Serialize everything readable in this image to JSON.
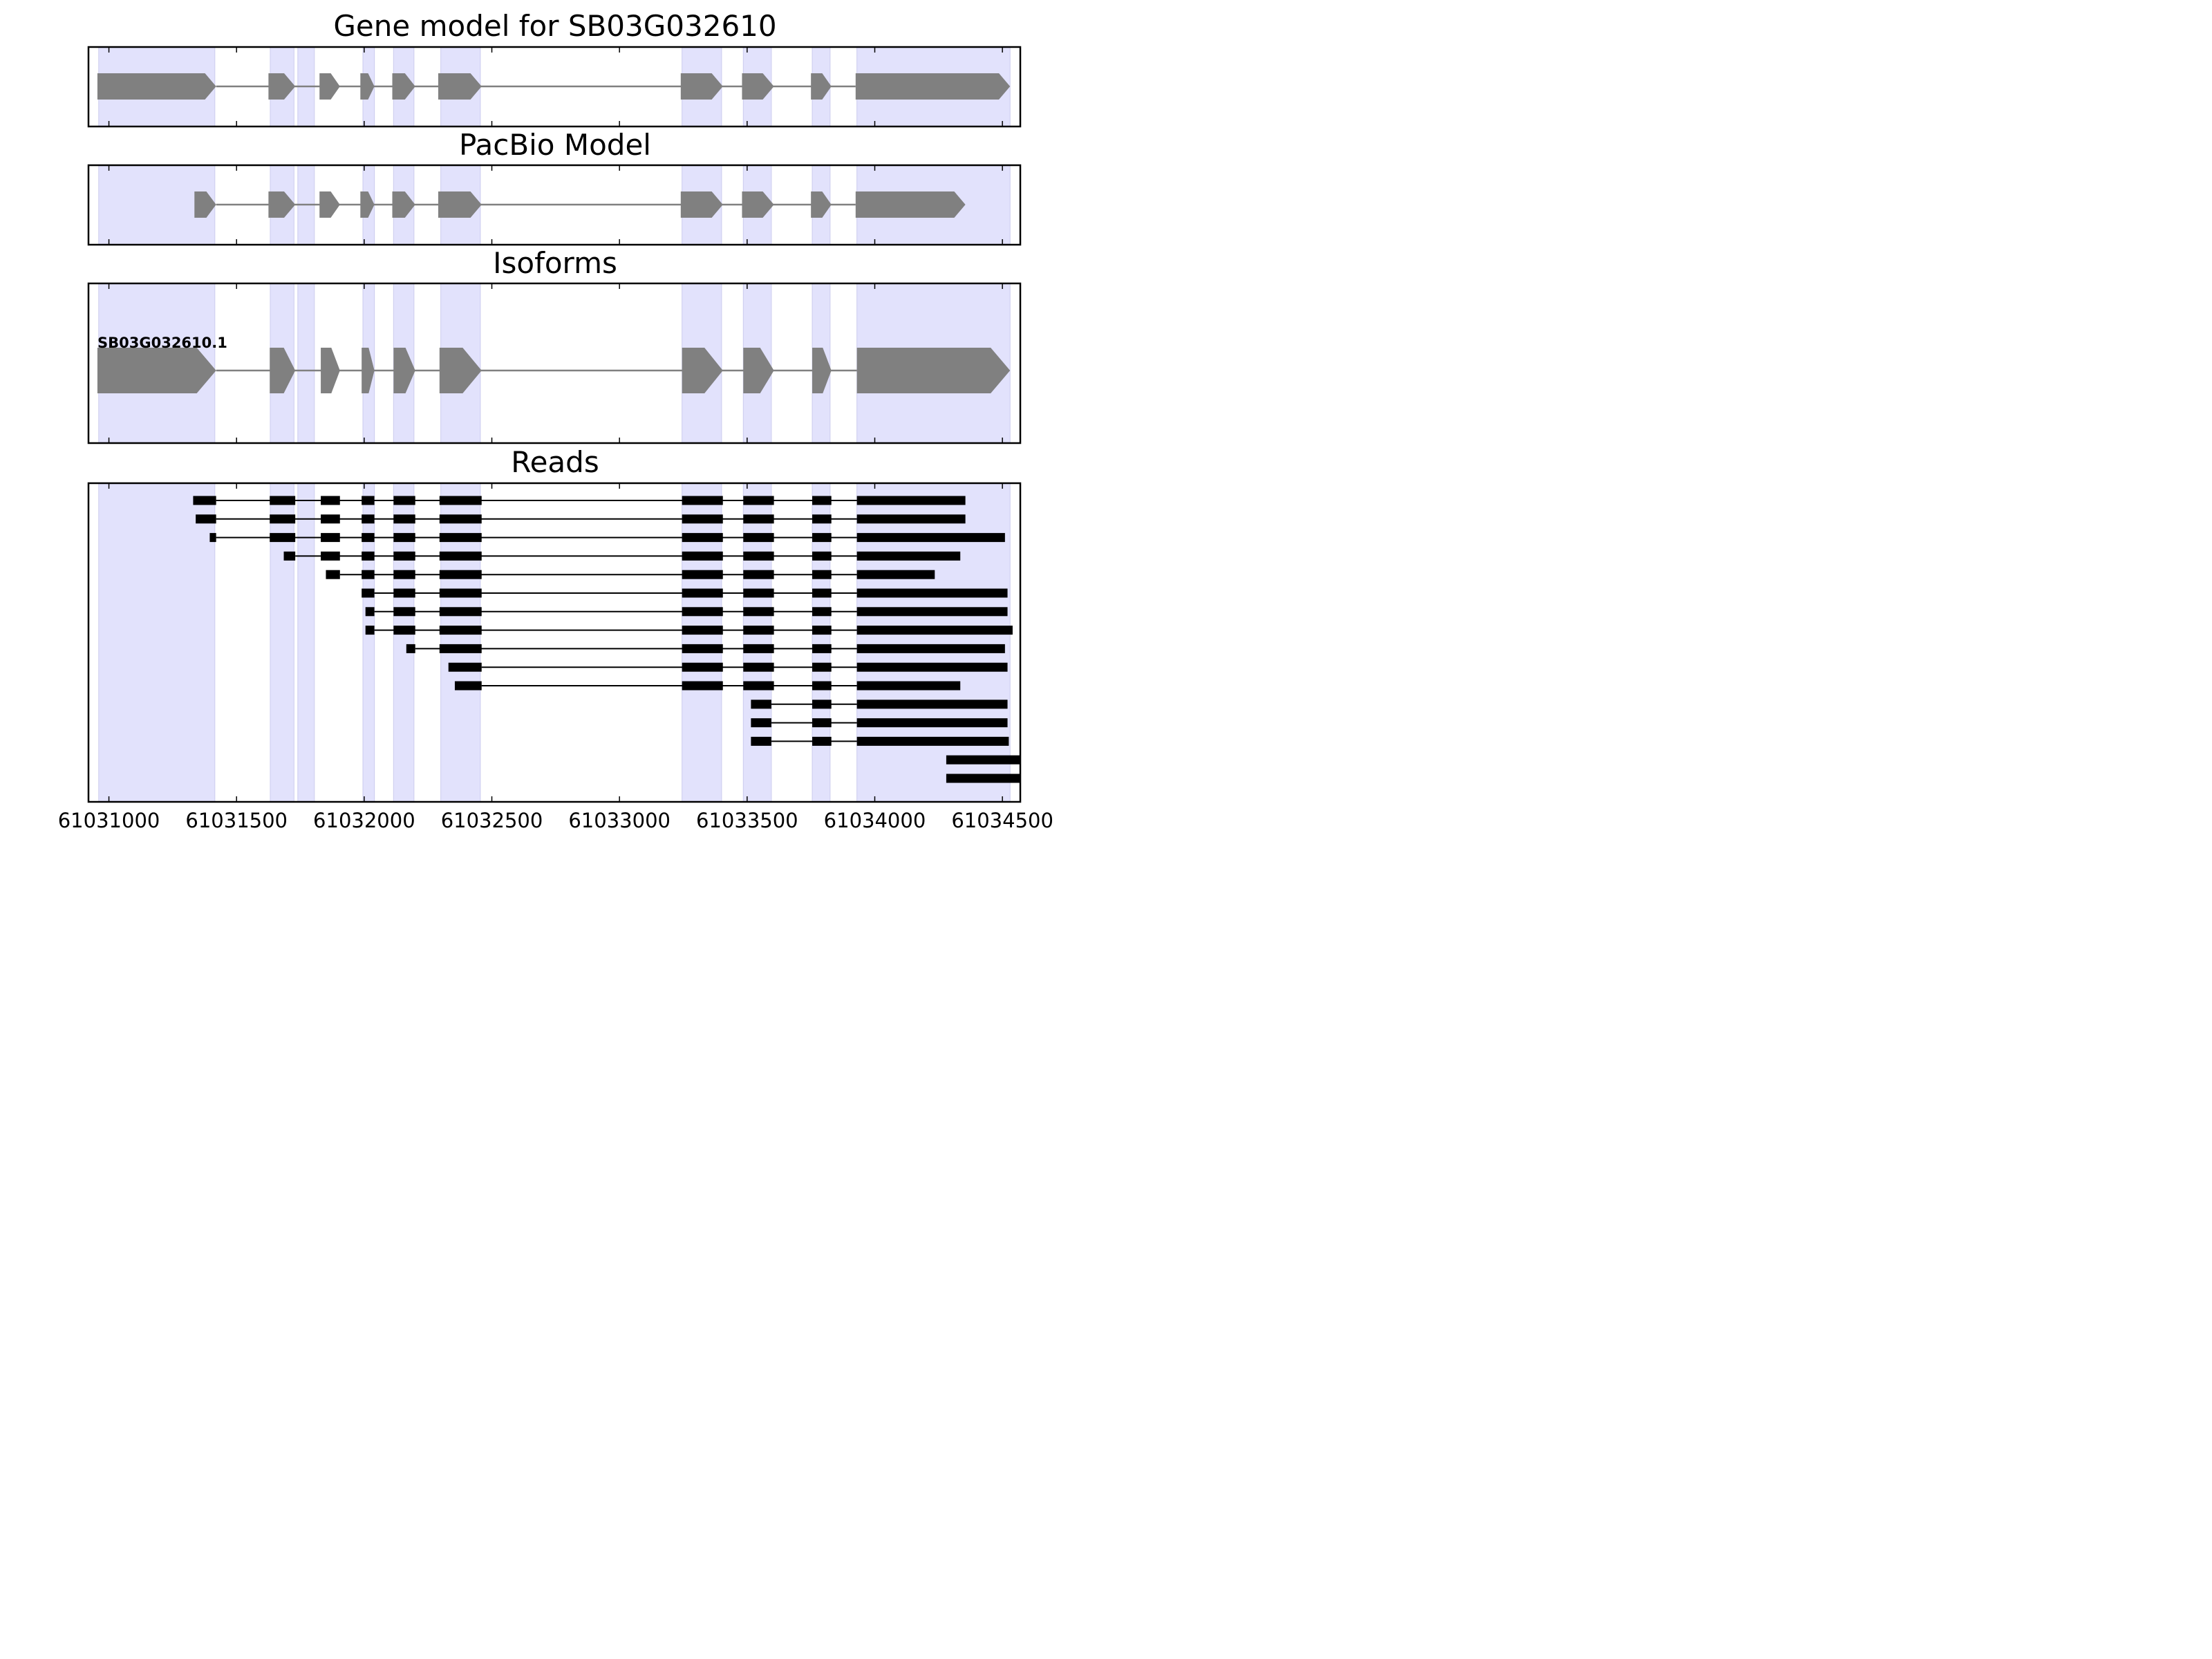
{
  "colors": {
    "shade": "#e2e2fc",
    "shade_edge": "#ccccee",
    "model_fill": "#808080",
    "read_fill": "#000000",
    "intron_model": "#808080",
    "intron_read": "#000000"
  },
  "chart_data": {
    "type": "gene-structure",
    "gene_id": "SB03G032610",
    "xlim": [
      61030920,
      61034570
    ],
    "xticks": [
      61031000,
      61031500,
      61032000,
      61032500,
      61033000,
      61033500,
      61034000,
      61034500
    ],
    "xtick_labels": [
      "61031000",
      "61031500",
      "61032000",
      "61032500",
      "61033000",
      "61033500",
      "61034000",
      "61034500"
    ],
    "exon_regions": [
      [
        61030960,
        61031415
      ],
      [
        61031632,
        61031725
      ],
      [
        61031740,
        61031805
      ],
      [
        61031995,
        61032040
      ],
      [
        61032115,
        61032195
      ],
      [
        61032300,
        61032455
      ],
      [
        61033245,
        61033400
      ],
      [
        61033485,
        61033595
      ],
      [
        61033755,
        61033825
      ],
      [
        61033930,
        61034530
      ]
    ],
    "panels": [
      {
        "title": "Gene model for SB03G032610",
        "strand": "+",
        "exons": [
          [
            61030955,
            61031420
          ],
          [
            61031625,
            61031730
          ],
          [
            61031825,
            61031905
          ],
          [
            61031985,
            61032040
          ],
          [
            61032110,
            61032200
          ],
          [
            61032290,
            61032460
          ],
          [
            61033240,
            61033405
          ],
          [
            61033480,
            61033605
          ],
          [
            61033750,
            61033830
          ],
          [
            61033925,
            61034530
          ]
        ]
      },
      {
        "title": "PacBio Model",
        "strand": "+",
        "exons": [
          [
            61031335,
            61031420
          ],
          [
            61031625,
            61031730
          ],
          [
            61031825,
            61031905
          ],
          [
            61031985,
            61032040
          ],
          [
            61032110,
            61032200
          ],
          [
            61032290,
            61032460
          ],
          [
            61033240,
            61033405
          ],
          [
            61033480,
            61033605
          ],
          [
            61033750,
            61033830
          ],
          [
            61033925,
            61034355
          ]
        ]
      },
      {
        "title": "Isoforms",
        "strand": "+",
        "isoform_label": "SB03G032610.1",
        "exons": [
          [
            61030955,
            61031420
          ],
          [
            61031630,
            61031730
          ],
          [
            61031830,
            61031905
          ],
          [
            61031990,
            61032040
          ],
          [
            61032115,
            61032200
          ],
          [
            61032295,
            61032460
          ],
          [
            61033245,
            61033405
          ],
          [
            61033485,
            61033605
          ],
          [
            61033755,
            61033830
          ],
          [
            61033930,
            61034530
          ]
        ]
      },
      {
        "title": "Reads",
        "reads": [
          [
            [
              61031330,
              61031420
            ],
            [
              61031630,
              61031730
            ],
            [
              61031830,
              61031905
            ],
            [
              61031990,
              61032040
            ],
            [
              61032115,
              61032200
            ],
            [
              61032295,
              61032460
            ],
            [
              61033245,
              61033405
            ],
            [
              61033485,
              61033605
            ],
            [
              61033755,
              61033830
            ],
            [
              61033930,
              61034355
            ]
          ],
          [
            [
              61031340,
              61031420
            ],
            [
              61031630,
              61031730
            ],
            [
              61031830,
              61031905
            ],
            [
              61031990,
              61032040
            ],
            [
              61032115,
              61032200
            ],
            [
              61032295,
              61032460
            ],
            [
              61033245,
              61033405
            ],
            [
              61033485,
              61033605
            ],
            [
              61033755,
              61033830
            ],
            [
              61033930,
              61034355
            ]
          ],
          [
            [
              61031395,
              61031420
            ],
            [
              61031630,
              61031730
            ],
            [
              61031830,
              61031905
            ],
            [
              61031990,
              61032040
            ],
            [
              61032115,
              61032200
            ],
            [
              61032295,
              61032460
            ],
            [
              61033245,
              61033405
            ],
            [
              61033485,
              61033605
            ],
            [
              61033755,
              61033830
            ],
            [
              61033930,
              61034510
            ]
          ],
          [
            [
              61031685,
              61031730
            ],
            [
              61031830,
              61031905
            ],
            [
              61031990,
              61032040
            ],
            [
              61032115,
              61032200
            ],
            [
              61032295,
              61032460
            ],
            [
              61033245,
              61033405
            ],
            [
              61033485,
              61033605
            ],
            [
              61033755,
              61033830
            ],
            [
              61033930,
              61034335
            ]
          ],
          [
            [
              61031850,
              61031905
            ],
            [
              61031990,
              61032040
            ],
            [
              61032115,
              61032200
            ],
            [
              61032295,
              61032460
            ],
            [
              61033245,
              61033405
            ],
            [
              61033485,
              61033605
            ],
            [
              61033755,
              61033830
            ],
            [
              61033930,
              61034235
            ]
          ],
          [
            [
              61031990,
              61032040
            ],
            [
              61032115,
              61032200
            ],
            [
              61032295,
              61032460
            ],
            [
              61033245,
              61033405
            ],
            [
              61033485,
              61033605
            ],
            [
              61033755,
              61033830
            ],
            [
              61033930,
              61034520
            ]
          ],
          [
            [
              61032005,
              61032040
            ],
            [
              61032115,
              61032200
            ],
            [
              61032295,
              61032460
            ],
            [
              61033245,
              61033405
            ],
            [
              61033485,
              61033605
            ],
            [
              61033755,
              61033830
            ],
            [
              61033930,
              61034520
            ]
          ],
          [
            [
              61032005,
              61032040
            ],
            [
              61032115,
              61032200
            ],
            [
              61032295,
              61032460
            ],
            [
              61033245,
              61033405
            ],
            [
              61033485,
              61033605
            ],
            [
              61033755,
              61033830
            ],
            [
              61033930,
              61034540
            ]
          ],
          [
            [
              61032165,
              61032200
            ],
            [
              61032295,
              61032460
            ],
            [
              61033245,
              61033405
            ],
            [
              61033485,
              61033605
            ],
            [
              61033755,
              61033830
            ],
            [
              61033930,
              61034510
            ]
          ],
          [
            [
              61032330,
              61032460
            ],
            [
              61033245,
              61033405
            ],
            [
              61033485,
              61033605
            ],
            [
              61033755,
              61033830
            ],
            [
              61033930,
              61034520
            ]
          ],
          [
            [
              61032355,
              61032460
            ],
            [
              61033245,
              61033405
            ],
            [
              61033485,
              61033605
            ],
            [
              61033755,
              61033830
            ],
            [
              61033930,
              61034335
            ]
          ],
          [
            [
              61033515,
              61033595
            ],
            [
              61033755,
              61033830
            ],
            [
              61033930,
              61034520
            ]
          ],
          [
            [
              61033515,
              61033595
            ],
            [
              61033755,
              61033830
            ],
            [
              61033930,
              61034520
            ]
          ],
          [
            [
              61033515,
              61033595
            ],
            [
              61033755,
              61033830
            ],
            [
              61033930,
              61034525
            ]
          ],
          [
            [
              61034280,
              61034570
            ]
          ],
          [
            [
              61034280,
              61034570
            ]
          ]
        ]
      }
    ]
  }
}
